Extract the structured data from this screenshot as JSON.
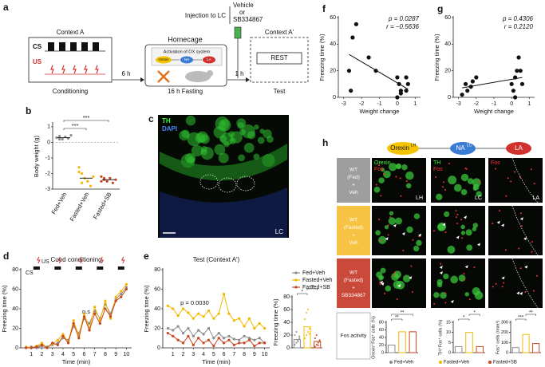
{
  "panel_labels": [
    "a",
    "b",
    "c",
    "d",
    "e",
    "f",
    "g",
    "h"
  ],
  "diagram_a": {
    "context_a": "Context A",
    "cs": "CS",
    "us": "US",
    "conditioning": "Conditioning",
    "delay1": "6 h",
    "homecage": "Homecage",
    "activation": "Activation of OX system",
    "orexin": "Orexin",
    "na": "NA",
    "la": "LA",
    "fasting": "16 h Fasting",
    "injection": "Injection to LC",
    "vehicle": "Vehicle",
    "or": "or",
    "drug": "SB334867",
    "delay2": "1 h",
    "context_a2": "Context A'",
    "rest": "REST",
    "test": "Test"
  },
  "image_c": {
    "stain1": "TH",
    "stain2": "DAPI",
    "region": "LC"
  },
  "charts": [
    {
      "type": "dot",
      "ylabel": "Body weight (g)",
      "categories": [
        "Fed+Veh",
        "Fasted+Veh",
        "Fasted+SB"
      ],
      "colors": [
        "#8c8c8c",
        "#f5b800",
        "#c8461f"
      ],
      "points": [
        [
          0.3,
          0.4,
          0.2,
          0.35,
          0.25,
          0.45,
          0.3,
          0.2
        ],
        [
          -1.6,
          -2.0,
          -2.3,
          -2.5,
          -2.8,
          -2.2,
          -1.9,
          -2.6
        ],
        [
          -2.2,
          -2.4,
          -2.5,
          -2.3,
          -2.6,
          -2.4,
          -2.5,
          -2.3
        ]
      ],
      "means": [
        0.3,
        -2.3,
        -2.4
      ],
      "ylim": [
        -3,
        1.2
      ],
      "yticks": [
        -3,
        -2,
        -1,
        0,
        1
      ],
      "annotations": [
        "***",
        "***"
      ]
    },
    {
      "type": "line",
      "title": "Cued conditioning",
      "xlabel": "Time (min)",
      "ylabel": "Freezing time (%)",
      "cs": "CS",
      "us": "US",
      "x": [
        0.5,
        1,
        1.5,
        2,
        2.5,
        3,
        3.5,
        4,
        4.5,
        5,
        5.5,
        6,
        6.5,
        7,
        7.5,
        8,
        8.5,
        9,
        9.5,
        10
      ],
      "xlim": [
        0,
        10.5
      ],
      "xticks": [
        1,
        2,
        3,
        4,
        5,
        6,
        7,
        8,
        9,
        10
      ],
      "ylim": [
        0,
        80
      ],
      "yticks": [
        0,
        20,
        40,
        60,
        80
      ],
      "series": [
        {
          "color": "#8c8c8c",
          "values": [
            0,
            1,
            0,
            2,
            1,
            3,
            5,
            10,
            8,
            22,
            15,
            30,
            25,
            38,
            30,
            45,
            35,
            50,
            55,
            62
          ]
        },
        {
          "color": "#f5b800",
          "values": [
            1,
            0,
            2,
            5,
            0,
            4,
            8,
            14,
            6,
            28,
            12,
            35,
            20,
            42,
            28,
            48,
            30,
            52,
            58,
            65
          ]
        },
        {
          "color": "#c8461f",
          "values": [
            0,
            0,
            1,
            3,
            0,
            5,
            3,
            12,
            5,
            25,
            10,
            32,
            18,
            35,
            25,
            40,
            32,
            48,
            52,
            60
          ]
        }
      ],
      "annotations": [
        "n.s"
      ]
    },
    {
      "type": "line",
      "title": "Test (Context A')",
      "xlabel": "Time (min)",
      "ylabel": "Freezing time (%)",
      "x": [
        0.5,
        1,
        1.5,
        2,
        2.5,
        3,
        3.5,
        4,
        4.5,
        5,
        5.5,
        6,
        6.5,
        7,
        7.5,
        8,
        8.5,
        9,
        9.5,
        10
      ],
      "xlim": [
        0,
        10.5
      ],
      "xticks": [
        1,
        2,
        3,
        4,
        5,
        6,
        7,
        8,
        9,
        10
      ],
      "ylim": [
        0,
        80
      ],
      "yticks": [
        0,
        20,
        40,
        60,
        80
      ],
      "series": [
        {
          "name": "Fed+Veh",
          "color": "#8c8c8c",
          "values": [
            20,
            18,
            22,
            15,
            20,
            12,
            18,
            14,
            20,
            10,
            15,
            10,
            12,
            9,
            8,
            12,
            10,
            8,
            10,
            5
          ]
        },
        {
          "name": "Fasted+Veh",
          "color": "#f5b800",
          "values": [
            43,
            40,
            33,
            40,
            36,
            30,
            35,
            32,
            38,
            30,
            35,
            55,
            35,
            28,
            30,
            22,
            30,
            20,
            25,
            20
          ]
        },
        {
          "name": "Fasted+SB",
          "color": "#c8461f",
          "values": [
            15,
            12,
            8,
            5,
            12,
            3,
            10,
            5,
            8,
            2,
            10,
            5,
            8,
            3,
            5,
            5,
            8,
            2,
            5,
            5
          ]
        }
      ],
      "annotations": [
        "p = 0.0030"
      ]
    },
    {
      "type": "bar",
      "ylabel": "Freezing time (%)",
      "values": [
        13,
        33,
        10
      ],
      "colors": [
        "#8c8c8c",
        "#f5b800",
        "#c8461f"
      ],
      "points": [
        [
          5,
          8,
          12,
          15,
          20,
          25,
          10,
          18
        ],
        [
          15,
          20,
          25,
          30,
          45,
          55,
          60,
          22
        ],
        [
          2,
          5,
          8,
          10,
          15,
          20,
          4,
          12
        ]
      ],
      "ylim": [
        0,
        80
      ],
      "yticks": [
        0,
        20,
        40,
        60,
        80
      ],
      "annotations": [
        "*",
        "**"
      ]
    },
    {
      "type": "scatter",
      "xlabel": "Weight change",
      "ylabel": "Freezing time (%)",
      "p": "p = 0.0287",
      "r": "r = −0.5636",
      "x": [
        -2.5,
        -2.3,
        -2.7,
        -1.6,
        -1.2,
        -2.6,
        0,
        0.1,
        0.2,
        0,
        0.5,
        0.6,
        0.5,
        0.2
      ],
      "y": [
        45,
        55,
        20,
        30,
        20,
        5,
        15,
        10,
        5,
        0,
        15,
        10,
        5,
        3
      ],
      "xlim": [
        -3.3,
        1.3
      ],
      "xticks": [
        -3,
        -2,
        -1,
        0,
        1
      ],
      "ylim": [
        0,
        60
      ],
      "yticks": [
        0,
        20,
        40,
        60
      ]
    },
    {
      "type": "scatter",
      "xlabel": "Weight change",
      "ylabel": "Freezing time (%)",
      "p": "p = 0.4306",
      "r": "r = 0.2120",
      "x": [
        -2.8,
        -2.6,
        -2.5,
        -2.3,
        -2.2,
        -2,
        0,
        0.1,
        0.2,
        0.3,
        0.4,
        0.5,
        0.6,
        0.2
      ],
      "y": [
        2,
        10,
        5,
        8,
        12,
        15,
        10,
        5,
        0,
        20,
        30,
        20,
        10,
        15
      ],
      "xlim": [
        -3.3,
        1.3
      ],
      "xticks": [
        -3,
        -2,
        -1,
        0,
        1
      ],
      "ylim": [
        0,
        60
      ],
      "yticks": [
        0,
        20,
        40,
        60
      ]
    },
    {
      "type": "bar",
      "ylabel": "Orexin⁺Fos⁺ cells (%)",
      "values": [
        20,
        55,
        55
      ],
      "colors": [
        "#8c8c8c",
        "#f5b800",
        "#c8461f"
      ],
      "ylim": [
        0,
        80
      ],
      "yticks": [
        0,
        20,
        40,
        60,
        80
      ],
      "annotations": [
        "**",
        "**"
      ]
    },
    {
      "type": "bar",
      "ylabel": "TH⁺Fos⁺ cells (%)",
      "values": [
        3,
        10,
        3
      ],
      "colors": [
        "#8c8c8c",
        "#f5b800",
        "#c8461f"
      ],
      "ylim": [
        0,
        15
      ],
      "yticks": [
        0,
        5,
        10,
        15
      ],
      "annotations": [
        "*",
        "*"
      ]
    },
    {
      "type": "bar",
      "ylabel": "Fos⁺ cells (/mm²)",
      "values": [
        50,
        180,
        90
      ],
      "colors": [
        "#8c8c8c",
        "#f5b800",
        "#c8461f"
      ],
      "ylim": [
        0,
        300
      ],
      "yticks": [
        0,
        100,
        200,
        300
      ],
      "annotations": [
        "***",
        "**"
      ]
    }
  ],
  "panel_h": {
    "pathway": [
      "Orexin",
      "LH",
      "NA",
      "LC",
      "LA"
    ],
    "rows": [
      [
        "WT",
        "(Fed)",
        "+",
        "Veh"
      ],
      [
        "WT",
        "(Fasted)",
        "+",
        "Veh"
      ],
      [
        "WT",
        "(Fasted)",
        "+",
        "SB334867"
      ]
    ],
    "columns": [
      [
        "Orexin",
        "Fos"
      ],
      [
        "TH",
        "Fos"
      ],
      [
        "Fos"
      ]
    ],
    "regions": [
      "LH",
      "LC",
      "LA"
    ],
    "activity": "Fos activity",
    "legend": [
      "Fed+Veh",
      "Fasted+Veh",
      "Fasted+SB"
    ]
  }
}
